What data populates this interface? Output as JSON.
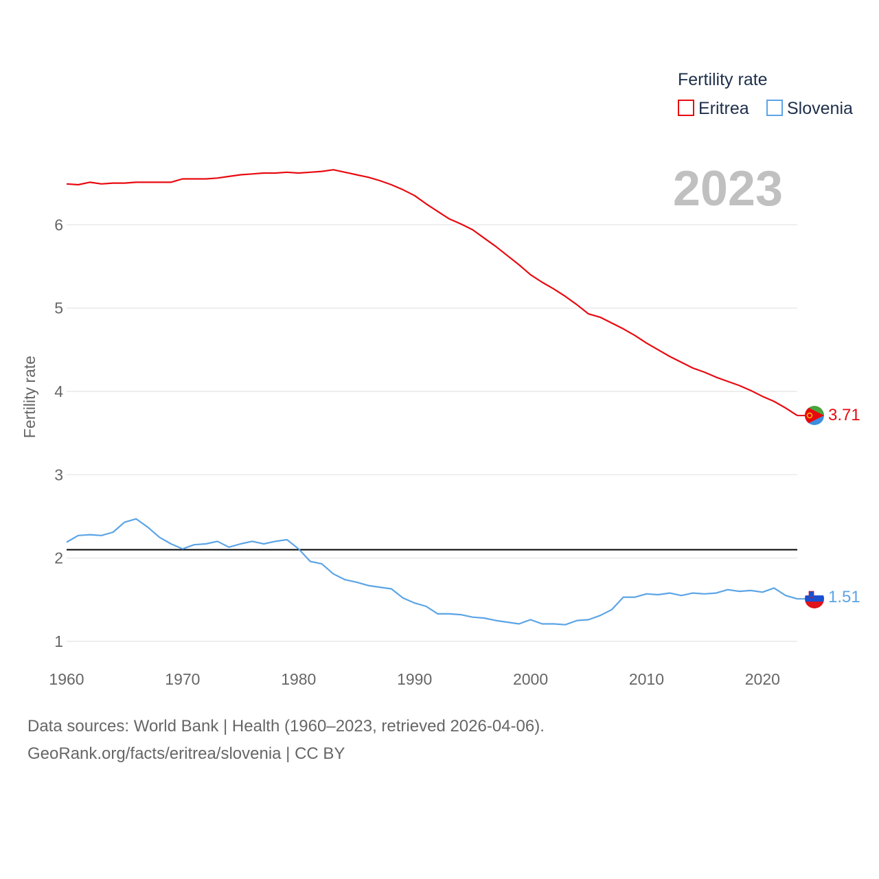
{
  "chart_data": {
    "type": "line",
    "ylabel": "Fertility rate",
    "xlabel": "",
    "legend_title": "Fertility rate",
    "legend_position": "top-right",
    "year_label": "2023",
    "xlim": [
      1960,
      2023
    ],
    "ylim": [
      0.95,
      6.95
    ],
    "x_ticks": [
      1960,
      1970,
      1980,
      1990,
      2000,
      2010,
      2020
    ],
    "y_ticks": [
      1,
      2,
      3,
      4,
      5,
      6
    ],
    "reference_line": 2.1,
    "x": [
      1960,
      1961,
      1962,
      1963,
      1964,
      1965,
      1966,
      1967,
      1968,
      1969,
      1970,
      1971,
      1972,
      1973,
      1974,
      1975,
      1976,
      1977,
      1978,
      1979,
      1980,
      1981,
      1982,
      1983,
      1984,
      1985,
      1986,
      1987,
      1988,
      1989,
      1990,
      1991,
      1992,
      1993,
      1994,
      1995,
      1996,
      1997,
      1998,
      1999,
      2000,
      2001,
      2002,
      2003,
      2004,
      2005,
      2006,
      2007,
      2008,
      2009,
      2010,
      2011,
      2012,
      2013,
      2014,
      2015,
      2016,
      2017,
      2018,
      2019,
      2020,
      2021,
      2022,
      2023
    ],
    "series": [
      {
        "name": "Eritrea",
        "color": "#e8090f",
        "end_label": "3.71",
        "values": [
          6.49,
          6.48,
          6.51,
          6.49,
          6.5,
          6.5,
          6.51,
          6.51,
          6.51,
          6.51,
          6.55,
          6.55,
          6.55,
          6.56,
          6.58,
          6.6,
          6.61,
          6.62,
          6.62,
          6.63,
          6.62,
          6.63,
          6.64,
          6.66,
          6.63,
          6.6,
          6.57,
          6.53,
          6.48,
          6.42,
          6.35,
          6.25,
          6.16,
          6.07,
          6.01,
          5.94,
          5.84,
          5.74,
          5.63,
          5.52,
          5.4,
          5.31,
          5.23,
          5.14,
          5.04,
          4.93,
          4.89,
          4.82,
          4.75,
          4.67,
          4.58,
          4.5,
          4.42,
          4.35,
          4.28,
          4.23,
          4.17,
          4.12,
          4.07,
          4.01,
          3.94,
          3.88,
          3.8,
          3.71
        ]
      },
      {
        "name": "Slovenia",
        "color": "#5ba4e6",
        "end_label": "1.51",
        "values": [
          2.19,
          2.27,
          2.28,
          2.27,
          2.31,
          2.43,
          2.47,
          2.37,
          2.25,
          2.17,
          2.11,
          2.16,
          2.17,
          2.2,
          2.13,
          2.17,
          2.2,
          2.17,
          2.2,
          2.22,
          2.11,
          1.96,
          1.93,
          1.81,
          1.74,
          1.71,
          1.67,
          1.65,
          1.63,
          1.52,
          1.46,
          1.42,
          1.33,
          1.33,
          1.32,
          1.29,
          1.28,
          1.25,
          1.23,
          1.21,
          1.26,
          1.21,
          1.21,
          1.2,
          1.25,
          1.26,
          1.31,
          1.38,
          1.53,
          1.53,
          1.57,
          1.56,
          1.58,
          1.55,
          1.58,
          1.57,
          1.58,
          1.62,
          1.6,
          1.61,
          1.59,
          1.64,
          1.55,
          1.51
        ]
      }
    ]
  },
  "footer": {
    "line1": "Data sources: World Bank | Health (1960–2023, retrieved 2026-04-06).",
    "line2": "GeoRank.org/facts/eritrea/slovenia | CC BY"
  }
}
